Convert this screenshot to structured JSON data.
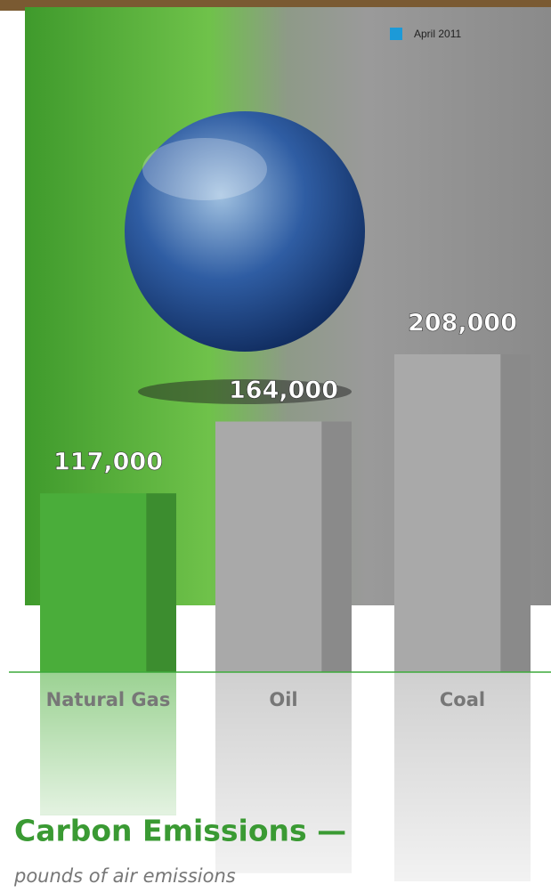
{
  "chart_data": {
    "type": "bar",
    "title": "Carbon Emissions —",
    "subtitle": "pounds of air emissions",
    "legend_label": "April 2011",
    "legend_color": "#1c9ad8",
    "categories": [
      "Natural Gas",
      "Oil",
      "Coal"
    ],
    "values": [
      117000,
      164000,
      208000
    ],
    "value_labels": [
      "117,000",
      "164,000",
      "208,000"
    ],
    "colors": [
      "#4aad3a",
      "#a9a9a9",
      "#a9a9a9"
    ]
  }
}
